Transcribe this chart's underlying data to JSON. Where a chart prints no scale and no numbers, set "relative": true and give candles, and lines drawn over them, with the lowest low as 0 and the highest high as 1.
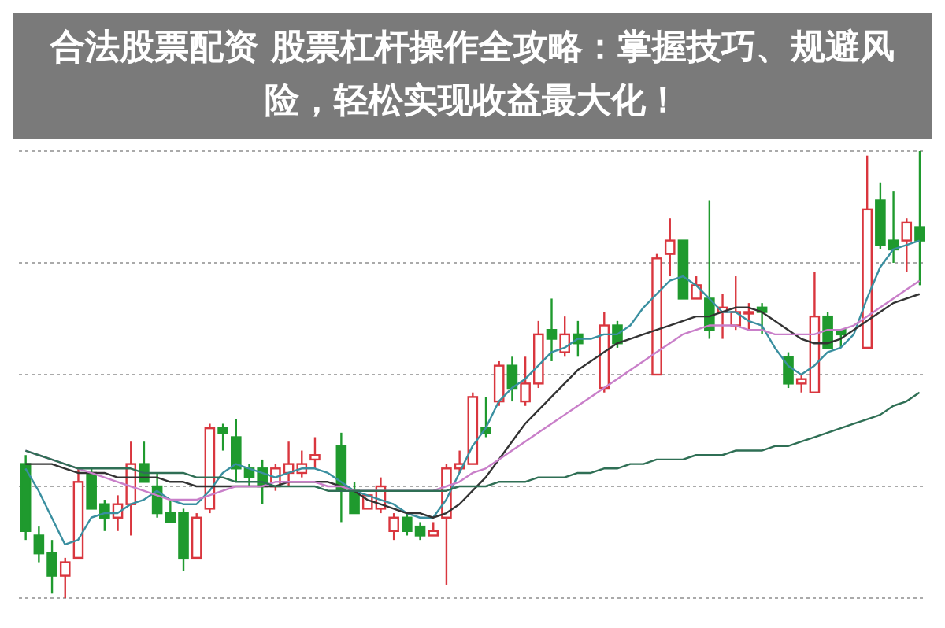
{
  "chart_data": {
    "type": "candlestick",
    "title": "合法股票配资 股票杠杆操作全攻略：掌握技巧、规避风险，轻松实现收益最大化！",
    "relative": true,
    "grid": "y",
    "categories": [
      null,
      null,
      null,
      null,
      null,
      null,
      null,
      null,
      null,
      null,
      null,
      null,
      null,
      null,
      null,
      null,
      null,
      null,
      null,
      null,
      null,
      null,
      null,
      null,
      null,
      null,
      null,
      null,
      null,
      null,
      null,
      null,
      null,
      null,
      null,
      null,
      null,
      null,
      null,
      null,
      null,
      null,
      null,
      null,
      null,
      null,
      null,
      null,
      null,
      null,
      null,
      null,
      null,
      null,
      null,
      null,
      null,
      null,
      null,
      null,
      null,
      null,
      null,
      null,
      null,
      null,
      null,
      null,
      null
    ],
    "ohlc": [
      [
        0.3,
        0.32,
        0.13,
        0.15
      ],
      [
        0.14,
        0.16,
        0.08,
        0.1
      ],
      [
        0.1,
        0.13,
        0.01,
        0.05
      ],
      [
        0.05,
        0.09,
        0,
        0.08
      ],
      [
        0.09,
        0.29,
        0.09,
        0.26
      ],
      [
        0.28,
        0.29,
        0.2,
        0.2
      ],
      [
        0.21,
        0.22,
        0.15,
        0.18
      ],
      [
        0.18,
        0.23,
        0.15,
        0.21
      ],
      [
        0.21,
        0.35,
        0.14,
        0.3
      ],
      [
        0.3,
        0.35,
        0.26,
        0.26
      ],
      [
        0.25,
        0.28,
        0.18,
        0.19
      ],
      [
        0.19,
        0.22,
        0.17,
        0.17
      ],
      [
        0.19,
        0.2,
        0.06,
        0.09
      ],
      [
        0.09,
        0.19,
        0.09,
        0.18
      ],
      [
        0.2,
        0.39,
        0.19,
        0.38
      ],
      [
        0.38,
        0.39,
        0.33,
        0.37
      ],
      [
        0.36,
        0.4,
        0.26,
        0.29
      ],
      [
        0.29,
        0.3,
        0.25,
        0.27
      ],
      [
        0.29,
        0.31,
        0.21,
        0.25
      ],
      [
        0.25,
        0.3,
        0.24,
        0.29
      ],
      [
        0.28,
        0.35,
        0.25,
        0.3
      ],
      [
        0.28,
        0.33,
        0.27,
        0.3
      ],
      [
        0.31,
        0.36,
        0.29,
        0.32
      ],
      null,
      [
        0.34,
        0.37,
        0.17,
        0.24
      ],
      [
        0.24,
        0.26,
        0.19,
        0.19
      ],
      [
        0.2,
        0.23,
        0.2,
        0.23
      ],
      [
        0.2,
        0.27,
        0.19,
        0.25
      ],
      [
        0.15,
        0.19,
        0.13,
        0.18
      ],
      [
        0.18,
        0.19,
        0.14,
        0.15
      ],
      [
        0.16,
        0.17,
        0.13,
        0.14
      ],
      [
        0.14,
        0.17,
        0.14,
        0.15
      ],
      [
        0.18,
        0.3,
        0.03,
        0.29
      ],
      [
        0.29,
        0.33,
        0.28,
        0.3
      ],
      [
        0.3,
        0.46,
        0.3,
        0.45
      ],
      [
        0.38,
        0.45,
        0.36,
        0.37
      ],
      [
        0.44,
        0.53,
        0.43,
        0.52
      ],
      [
        0.52,
        0.54,
        0.44,
        0.47
      ],
      [
        0.44,
        0.54,
        0.43,
        0.48
      ],
      [
        0.48,
        0.62,
        0.47,
        0.59
      ],
      [
        0.6,
        0.67,
        0.53,
        0.58
      ],
      [
        0.55,
        0.63,
        0.54,
        0.59
      ],
      [
        0.59,
        0.62,
        0.54,
        0.57
      ],
      null,
      [
        0.47,
        0.64,
        0.46,
        0.61
      ],
      [
        0.61,
        0.62,
        0.56,
        0.57
      ],
      null,
      null,
      [
        0.5,
        0.77,
        0.5,
        0.76
      ],
      [
        0.77,
        0.85,
        0.72,
        0.8
      ],
      [
        0.8,
        0.8,
        0.67,
        0.67
      ],
      [
        0.67,
        0.72,
        0.67,
        0.7
      ],
      [
        0.67,
        0.89,
        0.58,
        0.6
      ],
      [
        0.64,
        0.68,
        0.58,
        0.65
      ],
      [
        0.61,
        0.72,
        0.6,
        0.64
      ],
      [
        0.64,
        0.66,
        0.6,
        0.64
      ],
      [
        0.65,
        0.66,
        0.59,
        0.64
      ],
      null,
      [
        0.54,
        0.55,
        0.47,
        0.48
      ],
      [
        0.48,
        0.5,
        0.46,
        0.49
      ],
      [
        0.46,
        0.73,
        0.46,
        0.63
      ],
      [
        0.63,
        0.64,
        0.56,
        0.56
      ],
      [
        0.6,
        0.6,
        0.56,
        0.59
      ],
      null,
      [
        0.56,
        0.99,
        0.56,
        0.87
      ],
      [
        0.89,
        0.93,
        0.78,
        0.79
      ],
      [
        0.8,
        0.91,
        0.75,
        0.78
      ],
      [
        0.8,
        0.85,
        0.73,
        0.84
      ],
      [
        0.83,
        1,
        0.7,
        0.8
      ]
    ],
    "series": [
      {
        "type": "line",
        "color": "#3a8fa0",
        "values": [
          0.29,
          0.24,
          0.18,
          0.12,
          0.13,
          0.18,
          0.19,
          0.19,
          0.21,
          0.22,
          0.24,
          0.22,
          0.21,
          0.21,
          0.24,
          0.28,
          0.3,
          0.29,
          0.28,
          0.27,
          0.28,
          0.29,
          0.29,
          0.28,
          0.26,
          0.24,
          0.23,
          0.22,
          0.21,
          0.19,
          0.18,
          0.18,
          0.22,
          0.28,
          0.34,
          0.38,
          0.44,
          0.47,
          0.49,
          0.52,
          0.55,
          0.56,
          0.58,
          0.58,
          0.59,
          0.59,
          0.61,
          0.65,
          0.68,
          0.71,
          0.72,
          0.7,
          0.67,
          0.64,
          0.64,
          0.62,
          0.61,
          0.56,
          0.52,
          0.5,
          0.52,
          0.55,
          0.56,
          0.59,
          0.67,
          0.74,
          0.78,
          0.79,
          0.8
        ]
      },
      {
        "type": "line",
        "color": "#333333",
        "values": [
          0.3,
          0.3,
          0.3,
          0.29,
          0.28,
          0.28,
          0.28,
          0.27,
          0.27,
          0.27,
          0.27,
          0.26,
          0.26,
          0.25,
          0.25,
          0.25,
          0.25,
          0.25,
          0.25,
          0.25,
          0.26,
          0.26,
          0.26,
          0.26,
          0.25,
          0.24,
          0.22,
          0.21,
          0.2,
          0.19,
          0.19,
          0.18,
          0.19,
          0.21,
          0.24,
          0.27,
          0.31,
          0.35,
          0.39,
          0.42,
          0.45,
          0.48,
          0.51,
          0.53,
          0.55,
          0.57,
          0.58,
          0.59,
          0.6,
          0.61,
          0.62,
          0.63,
          0.63,
          0.64,
          0.65,
          0.65,
          0.64,
          0.62,
          0.6,
          0.58,
          0.57,
          0.57,
          0.58,
          0.6,
          0.62,
          0.64,
          0.66,
          0.67,
          0.68
        ]
      },
      {
        "type": "line",
        "color": "#c97fc9",
        "values": [
          0.33,
          0.32,
          0.31,
          0.3,
          0.29,
          0.28,
          0.27,
          0.26,
          0.25,
          0.24,
          0.23,
          0.22,
          0.22,
          0.22,
          0.23,
          0.24,
          0.25,
          0.25,
          0.25,
          0.26,
          0.26,
          0.26,
          0.26,
          0.25,
          0.25,
          0.24,
          0.24,
          0.24,
          0.24,
          0.24,
          0.24,
          0.24,
          0.25,
          0.26,
          0.28,
          0.29,
          0.31,
          0.33,
          0.35,
          0.37,
          0.39,
          0.41,
          0.43,
          0.45,
          0.47,
          0.49,
          0.51,
          0.53,
          0.55,
          0.57,
          0.59,
          0.6,
          0.61,
          0.61,
          0.61,
          0.6,
          0.6,
          0.59,
          0.59,
          0.59,
          0.59,
          0.6,
          0.6,
          0.61,
          0.63,
          0.65,
          0.67,
          0.69,
          0.71
        ]
      },
      {
        "type": "line",
        "color": "#2f6f55",
        "values": [
          0.33,
          0.32,
          0.31,
          0.3,
          0.29,
          0.29,
          0.29,
          0.29,
          0.29,
          0.28,
          0.28,
          0.28,
          0.28,
          0.27,
          0.27,
          0.27,
          0.26,
          0.26,
          0.26,
          0.25,
          0.25,
          0.25,
          0.25,
          0.24,
          0.24,
          0.24,
          0.24,
          0.24,
          0.24,
          0.24,
          0.24,
          0.24,
          0.24,
          0.25,
          0.25,
          0.25,
          0.26,
          0.26,
          0.26,
          0.27,
          0.27,
          0.27,
          0.28,
          0.28,
          0.29,
          0.29,
          0.3,
          0.3,
          0.31,
          0.31,
          0.31,
          0.32,
          0.32,
          0.32,
          0.33,
          0.33,
          0.33,
          0.34,
          0.34,
          0.35,
          0.36,
          0.37,
          0.38,
          0.39,
          0.4,
          0.41,
          0.43,
          0.44,
          0.46
        ]
      }
    ]
  }
}
